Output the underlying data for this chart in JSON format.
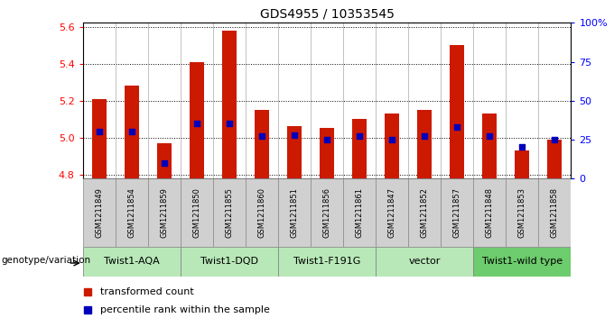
{
  "title": "GDS4955 / 10353545",
  "samples": [
    "GSM1211849",
    "GSM1211854",
    "GSM1211859",
    "GSM1211850",
    "GSM1211855",
    "GSM1211860",
    "GSM1211851",
    "GSM1211856",
    "GSM1211861",
    "GSM1211847",
    "GSM1211852",
    "GSM1211857",
    "GSM1211848",
    "GSM1211853",
    "GSM1211858"
  ],
  "bar_values": [
    5.21,
    5.28,
    4.97,
    5.41,
    5.58,
    5.15,
    5.06,
    5.05,
    5.1,
    5.13,
    5.15,
    5.5,
    5.13,
    4.93,
    4.99
  ],
  "percentile_values": [
    30,
    30,
    10,
    35,
    35,
    27,
    28,
    25,
    27,
    25,
    27,
    33,
    27,
    20,
    25
  ],
  "groups": [
    {
      "label": "Twist1-AQA",
      "start": 0,
      "end": 3,
      "color": "#b8e8b8"
    },
    {
      "label": "Twist1-DQD",
      "start": 3,
      "end": 6,
      "color": "#b8e8b8"
    },
    {
      "label": "Twist1-F191G",
      "start": 6,
      "end": 9,
      "color": "#b8e8b8"
    },
    {
      "label": "vector",
      "start": 9,
      "end": 12,
      "color": "#b8e8b8"
    },
    {
      "label": "Twist1-wild type",
      "start": 12,
      "end": 15,
      "color": "#6dcc6d"
    }
  ],
  "ylim_left": [
    4.78,
    5.62
  ],
  "ylim_right": [
    0,
    100
  ],
  "yticks_left": [
    4.8,
    5.0,
    5.2,
    5.4,
    5.6
  ],
  "yticks_right": [
    0,
    25,
    50,
    75,
    100
  ],
  "bar_color": "#cc1a00",
  "dot_color": "#0000bb",
  "sample_box_color": "#d0d0d0",
  "sample_box_edge": "#888888",
  "bg_color": "#ffffff",
  "genotype_label": "genotype/variation"
}
